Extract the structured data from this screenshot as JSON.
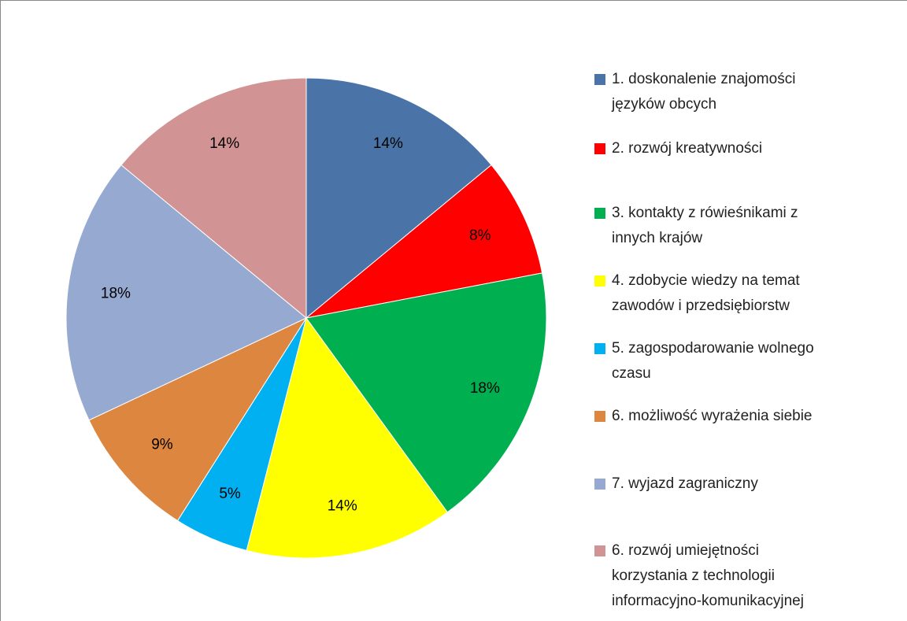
{
  "chart_data": {
    "type": "pie",
    "series": [
      {
        "name": "values",
        "values": [
          14,
          8,
          18,
          14,
          5,
          9,
          18,
          14
        ],
        "value_labels": [
          "14%",
          "8%",
          "18%",
          "14%",
          "5%",
          "9%",
          "18%",
          "14%"
        ]
      }
    ],
    "categories": [
      "1. doskonalenie znajomości\njęzyków obcych",
      "2. rozwój kreatywności",
      "3. kontakty z rówieśnikami z\ninnych krajów",
      "4. zdobycie wiedzy na temat\nzawodów i przedsiębiorstw",
      "5. zagospodarowanie wolnego\nczasu",
      "6. możliwość wyrażenia siebie",
      "7. wyjazd zagraniczny",
      "6. rozwój umiejętności\nkorzystania z technologii\ninformacyjno-komunikacyjnej"
    ],
    "colors": [
      "#4a73a8",
      "#ff0000",
      "#00b050",
      "#ffff00",
      "#00b0f0",
      "#dd8640",
      "#95a9d1",
      "#d19393"
    ],
    "legend": "right"
  }
}
